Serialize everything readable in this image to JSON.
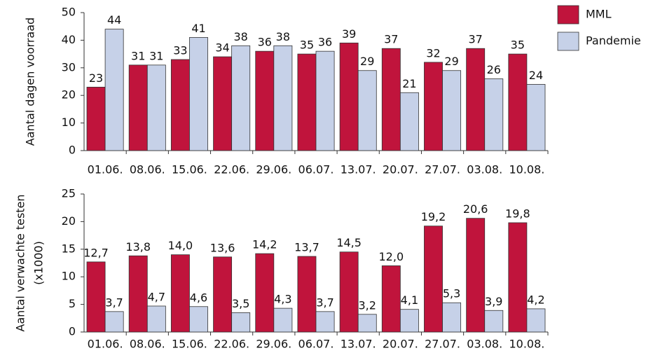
{
  "chart_data": [
    {
      "type": "bar",
      "ylabel": "Aantal dagen voorraad",
      "categories": [
        "01.06.",
        "08.06.",
        "15.06.",
        "22.06.",
        "29.06.",
        "06.07.",
        "13.07.",
        "20.07.",
        "27.07.",
        "03.08.",
        "10.08."
      ],
      "series": [
        {
          "name": "MML",
          "color": "#c0143c",
          "values": [
            23,
            31,
            33,
            34,
            36,
            35,
            39,
            37,
            32,
            37,
            35
          ]
        },
        {
          "name": "Pandemie",
          "color": "#c6d1e8",
          "values": [
            44,
            31,
            41,
            38,
            38,
            36,
            29,
            21,
            29,
            26,
            24
          ]
        }
      ],
      "ylim": [
        0,
        50
      ],
      "yticks": [
        0,
        10,
        20,
        30,
        40,
        50
      ],
      "legend": "top-right"
    },
    {
      "type": "bar",
      "ylabel": [
        "Aantal verwachte testen",
        "(x1000)"
      ],
      "categories": [
        "01.06.",
        "08.06.",
        "15.06.",
        "22.06.",
        "29.06.",
        "06.07.",
        "13.07.",
        "20.07.",
        "27.07.",
        "03.08.",
        "10.08."
      ],
      "series": [
        {
          "color": "#c0143c",
          "values": [
            12.7,
            13.8,
            14.0,
            13.6,
            14.2,
            13.7,
            14.5,
            12.0,
            19.2,
            20.6,
            19.8
          ],
          "value_labels": [
            "12,7",
            "13,8",
            "14,0",
            "13,6",
            "14,2",
            "13,7",
            "14,5",
            "12,0",
            "19,2",
            "20,6",
            "19,8"
          ]
        },
        {
          "color": "#c6d1e8",
          "values": [
            3.7,
            4.7,
            4.6,
            3.5,
            4.3,
            3.7,
            3.2,
            4.1,
            5.3,
            3.9,
            4.2
          ],
          "value_labels": [
            "3,7",
            "4,7",
            "4,6",
            "3,5",
            "4,3",
            "3,7",
            "3,2",
            "4,1",
            "5,3",
            "3,9",
            "4,2"
          ]
        }
      ],
      "ylim": [
        0,
        25
      ],
      "yticks": [
        0,
        5,
        10,
        15,
        20,
        25
      ]
    }
  ]
}
